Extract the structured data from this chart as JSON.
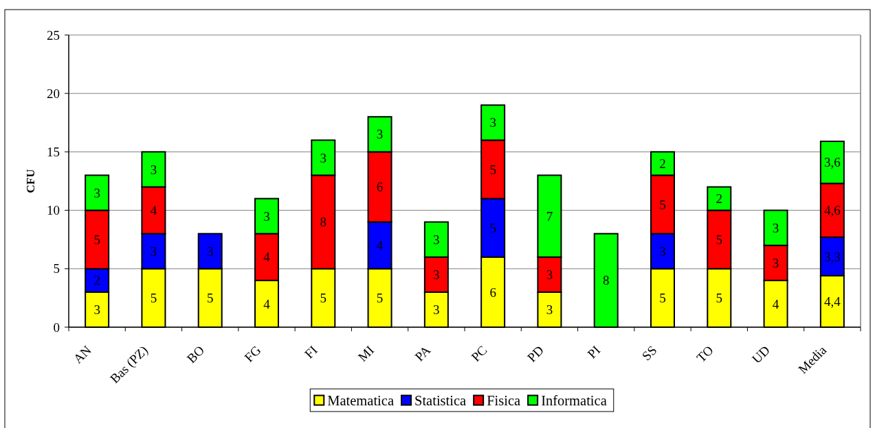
{
  "chart_data": {
    "type": "bar",
    "stacked": true,
    "ylabel": "CFU",
    "categories": [
      "AN",
      "Bas (PZ)",
      "BO",
      "FG",
      "FI",
      "MI",
      "PA",
      "PC",
      "PD",
      "PI",
      "SS",
      "TO",
      "UD",
      "Media"
    ],
    "series": [
      {
        "name": "Matematica",
        "color": "#ffff00",
        "values": [
          3,
          5,
          5,
          4,
          5,
          5,
          3,
          6,
          3,
          null,
          5,
          5,
          4,
          4.4
        ],
        "value_labels": [
          "3",
          "5",
          "5",
          "4",
          "5",
          "5",
          "3",
          "6",
          "3",
          null,
          "5",
          "5",
          "4",
          "4,4"
        ]
      },
      {
        "name": "Statistica",
        "color": "#0000ff",
        "values": [
          2,
          3,
          3,
          null,
          null,
          4,
          null,
          5,
          null,
          null,
          3,
          null,
          null,
          3.3
        ],
        "value_labels": [
          "2",
          "3",
          "3",
          null,
          null,
          "4",
          null,
          "5",
          null,
          null,
          "3",
          null,
          null,
          "3,3"
        ]
      },
      {
        "name": "Fisica",
        "color": "#ff0000",
        "values": [
          5,
          4,
          null,
          4,
          8,
          6,
          3,
          5,
          3,
          null,
          5,
          5,
          3,
          4.6
        ],
        "value_labels": [
          "5",
          "4",
          null,
          "4",
          "8",
          "6",
          "3",
          "5",
          "3",
          null,
          "5",
          "5",
          "3",
          "4,6"
        ]
      },
      {
        "name": "Informatica",
        "color": "#00ff00",
        "values": [
          3,
          3,
          null,
          3,
          3,
          3,
          3,
          3,
          7,
          8,
          2,
          2,
          3,
          3.6
        ],
        "value_labels": [
          "3",
          "3",
          null,
          "3",
          "3",
          "3",
          "3",
          "3",
          "7",
          "8",
          "2",
          "2",
          "3",
          "3,6"
        ]
      }
    ],
    "ylim": [
      0,
      25
    ],
    "yticks": [
      0,
      5,
      10,
      15,
      20,
      25
    ],
    "grid": true,
    "legend": "bottom"
  }
}
